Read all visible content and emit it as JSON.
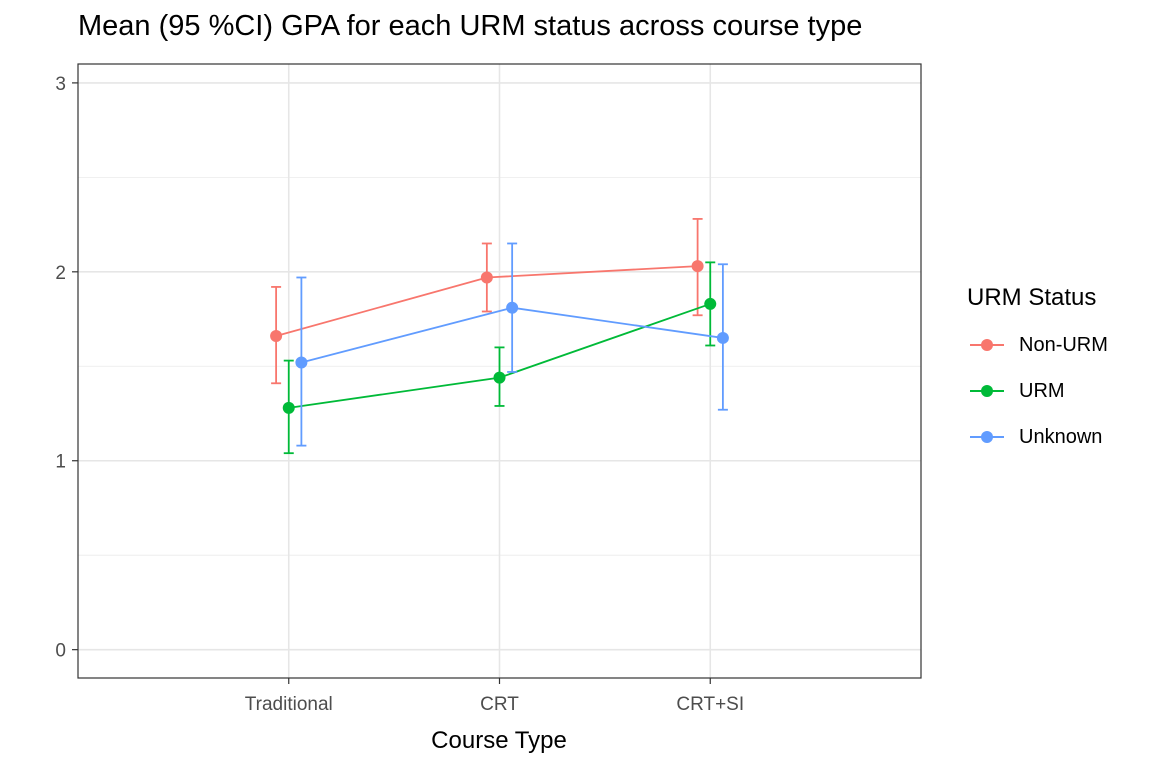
{
  "chart_data": {
    "type": "line",
    "title": "Mean (95 %CI) GPA for each URM status across course type",
    "xlabel": "Course Type",
    "ylabel": "",
    "categories": [
      "Traditional",
      "CRT",
      "CRT+SI"
    ],
    "ylim": [
      -0.15,
      3.1
    ],
    "yticks": [
      0,
      1,
      2,
      3
    ],
    "grid": true,
    "legend_title": "URM Status",
    "legend_position": "right",
    "series": [
      {
        "name": "Non-URM",
        "color": "#F8766D",
        "values": [
          1.66,
          1.97,
          2.03
        ],
        "lower": [
          1.41,
          1.79,
          1.77
        ],
        "upper": [
          1.92,
          2.15,
          2.28
        ]
      },
      {
        "name": "URM",
        "color": "#00BA38",
        "values": [
          1.28,
          1.44,
          1.83
        ],
        "lower": [
          1.04,
          1.29,
          1.61
        ],
        "upper": [
          1.53,
          1.6,
          2.05
        ]
      },
      {
        "name": "Unknown",
        "color": "#619CFF",
        "values": [
          1.52,
          1.81,
          1.65
        ],
        "lower": [
          1.08,
          1.47,
          1.27
        ],
        "upper": [
          1.97,
          2.15,
          2.04
        ]
      }
    ]
  }
}
